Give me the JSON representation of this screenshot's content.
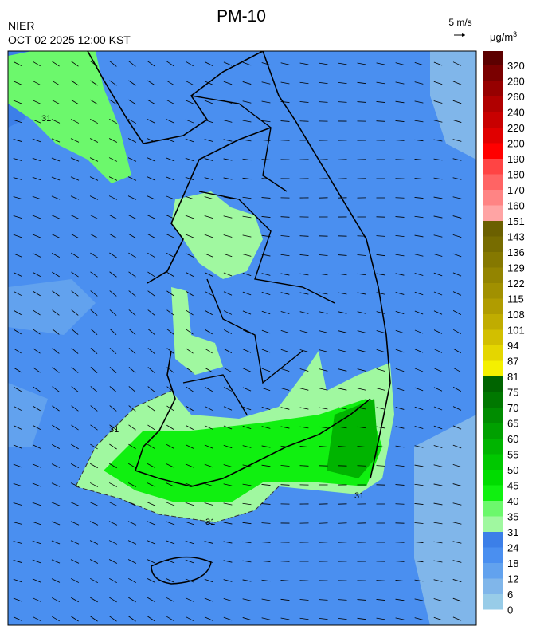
{
  "header": {
    "title": "PM-10",
    "source": "NIER",
    "datetime": "OCT 02 2025 12:00 KST"
  },
  "wind_reference": "5 m/s",
  "unit": {
    "base": "μg/m",
    "sup": "3"
  },
  "contour_labels": [
    "31",
    "31",
    "31",
    "31"
  ],
  "colorbar": {
    "levels": [
      320,
      280,
      260,
      240,
      220,
      200,
      190,
      180,
      170,
      160,
      151,
      143,
      136,
      129,
      122,
      115,
      108,
      101,
      94,
      87,
      81,
      75,
      70,
      65,
      60,
      55,
      50,
      45,
      40,
      35,
      31,
      24,
      18,
      12,
      6,
      0
    ],
    "colors": [
      "#5c0000",
      "#7a0000",
      "#960000",
      "#b00000",
      "#c80000",
      "#e00000",
      "#ff0000",
      "#ff4444",
      "#ff6464",
      "#ff8484",
      "#ffa4a4",
      "#6b6000",
      "#776c00",
      "#857800",
      "#938400",
      "#a19000",
      "#b09c00",
      "#c0ac00",
      "#d2bf00",
      "#e4d600",
      "#f4f000",
      "#006400",
      "#007800",
      "#008c00",
      "#00a000",
      "#00b400",
      "#00c800",
      "#00dc00",
      "#10f010",
      "#6cf86c",
      "#a0f8a0",
      "#3c7fe8",
      "#4a8ff0",
      "#62a2ee",
      "#80b6ea",
      "#98cce8"
    ]
  }
}
